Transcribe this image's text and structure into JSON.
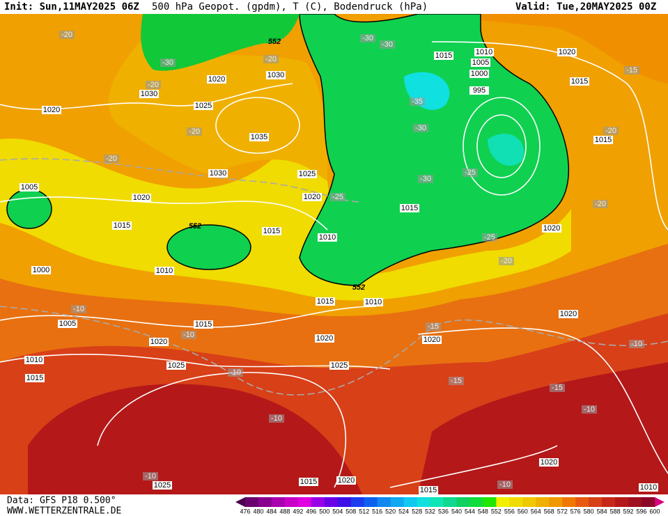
{
  "header": {
    "init": "Init: Sun,11MAY2025 06Z",
    "title": "500 hPa Geopot. (gpdm), T (C), Bodendruck (hPa)",
    "valid": "Valid: Tue,20MAY2025 00Z"
  },
  "footer": {
    "source": "Data: GFS P18 0.500°",
    "site": "WWW.WETTERZENTRALE.DE"
  },
  "pressure_labels": [
    1020,
    1030,
    1020,
    1025,
    1030,
    1035,
    1030,
    1025,
    1020,
    1020,
    1015,
    1005,
    1000,
    1010,
    1015,
    1010,
    1015,
    1015,
    1010,
    1005,
    1000,
    995,
    1020,
    1015,
    1015,
    1020,
    1020,
    1015,
    1010,
    1015,
    1020,
    1020,
    1005,
    1020,
    1025,
    1025,
    1010,
    1015,
    1025,
    1015,
    1020,
    1015,
    1020,
    1010
  ],
  "temperature_labels": [
    -20,
    -30,
    -20,
    -20,
    -20,
    -20,
    -30,
    -30,
    -35,
    -30,
    -25,
    -30,
    -25,
    -25,
    -20,
    -15,
    -20,
    -20,
    -10,
    -10,
    -10,
    -15,
    -15,
    -15,
    -10,
    -10,
    -10,
    -10,
    -10
  ],
  "height_labels": [
    552,
    552,
    552
  ],
  "colorbar": {
    "labels": [
      476,
      480,
      484,
      488,
      492,
      496,
      500,
      504,
      508,
      512,
      516,
      520,
      524,
      528,
      532,
      536,
      540,
      544,
      548,
      552,
      556,
      560,
      564,
      568,
      572,
      576,
      580,
      584,
      588,
      592,
      596,
      600
    ],
    "colors": [
      "#4b0050",
      "#6a006e",
      "#8a0090",
      "#a800ae",
      "#c800c8",
      "#e000e0",
      "#9a00e6",
      "#6a00e6",
      "#3c10e6",
      "#1c3cf0",
      "#1060f0",
      "#1088f0",
      "#10a8f0",
      "#10c8f0",
      "#10e0e0",
      "#10e6b4",
      "#10d890",
      "#10d060",
      "#10dc3c",
      "#20e600",
      "#f0f000",
      "#f0dc00",
      "#f0c800",
      "#f0b000",
      "#f09800",
      "#f07800",
      "#e85a10",
      "#d84018",
      "#c82818",
      "#b41818",
      "#a01020",
      "#8c0828",
      "#d8007e"
    ]
  }
}
